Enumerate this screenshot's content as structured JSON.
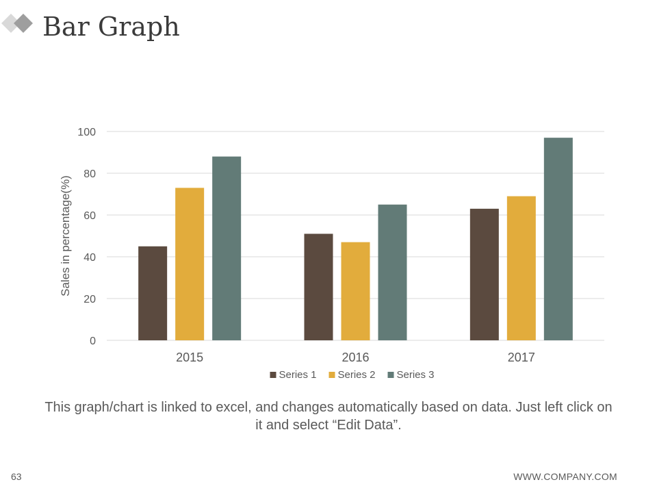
{
  "slide": {
    "title": "Bar Graph",
    "caption": "This graph/chart is linked to excel, and changes automatically based on data. Just left click on it and select “Edit Data”.",
    "page_number": "63",
    "footer_url": "WWW.COMPANY.COM"
  },
  "colors": {
    "series_1": "#5b4a3f",
    "series_2": "#e2ac3c",
    "series_3": "#627b77",
    "grid": "#d9d9d9",
    "axis_text": "#595959",
    "logo_light": "#d9d9d9",
    "logo_dark": "#9e9e9e"
  },
  "chart_data": {
    "type": "bar",
    "categories": [
      "2015",
      "2016",
      "2017"
    ],
    "series": [
      {
        "name": "Series 1",
        "values": [
          45,
          51,
          63
        ]
      },
      {
        "name": "Series 2",
        "values": [
          73,
          47,
          69
        ]
      },
      {
        "name": "Series 3",
        "values": [
          88,
          65,
          97
        ]
      }
    ],
    "ylabel": "Sales in percentage(%)",
    "ylim": [
      0,
      100
    ],
    "yticks": [
      "0",
      "20",
      "40",
      "60",
      "80",
      "100"
    ],
    "grid": true,
    "legend_position": "bottom"
  }
}
